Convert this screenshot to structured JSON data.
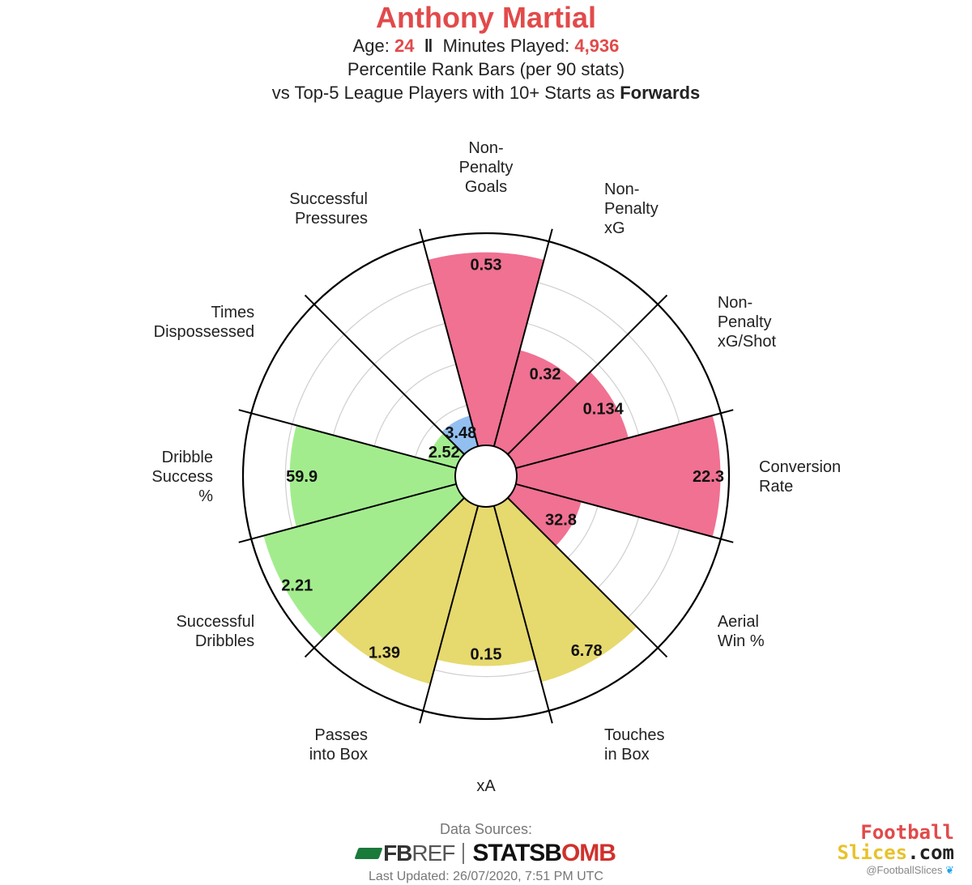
{
  "header": {
    "title": "Anthony Martial",
    "age_label": "Age:",
    "age": "24",
    "separator": "‖",
    "minutes_label": "Minutes Played:",
    "minutes": "4,936",
    "subtitle1": "Percentile Rank Bars (per 90 stats)",
    "subtitle2_prefix": "vs Top-5 League Players with 10+ Starts as",
    "subtitle2_bold": "Forwards",
    "accent_color": "#e24a4a"
  },
  "chart_data": {
    "type": "polar-bar",
    "radial_range": [
      0,
      100
    ],
    "gridlines": [
      20,
      40,
      60,
      80,
      100
    ],
    "categories": [
      {
        "label": "Non-\nPenalty\nGoals",
        "value_label": "0.53",
        "percentile": 91,
        "group": "shooting"
      },
      {
        "label": "Non-\nPenalty\nxG",
        "value_label": "0.32",
        "percentile": 47,
        "group": "shooting"
      },
      {
        "label": "Non-\nPenalty\nxG/Shot",
        "value_label": "0.134",
        "percentile": 55,
        "group": "shooting"
      },
      {
        "label": "Conversion\nRate",
        "value_label": "22.3",
        "percentile": 96,
        "group": "shooting"
      },
      {
        "label": "Aerial\nWin %",
        "value_label": "32.8",
        "percentile": 32,
        "group": "shooting"
      },
      {
        "label": "Touches\nin Box",
        "value_label": "6.78",
        "percentile": 86,
        "group": "passing"
      },
      {
        "label": "xA",
        "value_label": "0.15",
        "percentile": 75,
        "group": "passing"
      },
      {
        "label": "Passes\ninto Box",
        "value_label": "1.39",
        "percentile": 87,
        "group": "passing"
      },
      {
        "label": "Successful\nDribbles",
        "value_label": "2.21",
        "percentile": 94,
        "group": "dribbling"
      },
      {
        "label": "Dribble\nSuccess\n%",
        "value_label": "59.9",
        "percentile": 78,
        "group": "dribbling"
      },
      {
        "label": "Times\nDispossessed",
        "value_label": "2.52",
        "percentile": 14,
        "group": "dribbling"
      },
      {
        "label": "Successful\nPressures",
        "value_label": "3.48",
        "percentile": 15,
        "group": "defending"
      }
    ],
    "group_colors": {
      "shooting": "#f07192",
      "passing": "#e6d96e",
      "dribbling": "#a3ec8e",
      "defending": "#93bff0"
    }
  },
  "footer": {
    "sources_label": "Data Sources:",
    "fbref_a": "FB",
    "fbref_b": "REF",
    "statsbomb_a": "STATSB",
    "statsbomb_b": "OMB",
    "updated": "Last Updated: 26/07/2020, 7:51 PM UTC"
  },
  "brand": {
    "line1": "Football",
    "line2_s": "Slices",
    "line2_rest": ".com",
    "twitter": "@FootballSlices",
    "twitter_icon": "bird-icon"
  }
}
